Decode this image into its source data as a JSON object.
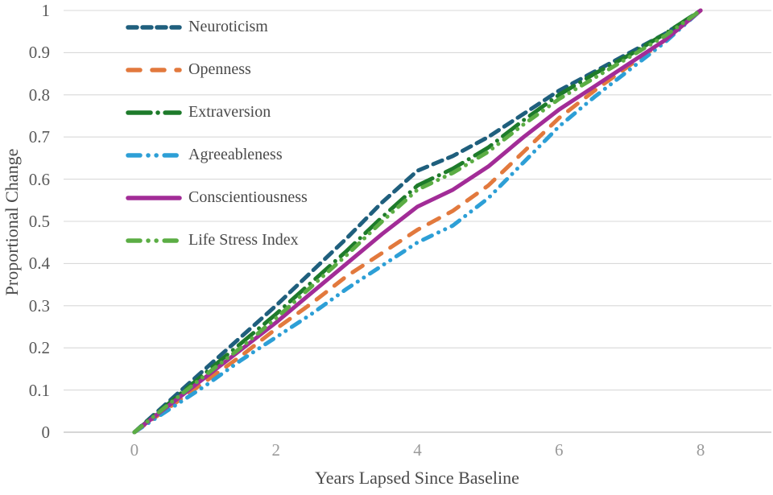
{
  "figure": {
    "background": "#ffffff",
    "grid_color": "#d9d9d9",
    "axis_line_color": "#c9c9c9",
    "y_tick_color": "#595959",
    "x_tick_color": "#9a9a9a",
    "title_color": "#4a4a4a"
  },
  "chart_data": {
    "type": "line",
    "title": "",
    "xlabel": "Years Lapsed Since Baseline",
    "ylabel": "Proportional Change",
    "xlim": [
      -1,
      9
    ],
    "ylim": [
      0,
      1
    ],
    "x_tick_values": [
      0,
      2,
      4,
      6,
      8
    ],
    "x_tick_labels": [
      "0",
      "2",
      "4",
      "6",
      "8"
    ],
    "y_tick_values": [
      1,
      0.9,
      0.8,
      0.7,
      0.6,
      0.5,
      0.4,
      0.3,
      0.2,
      0.1,
      0
    ],
    "y_tick_labels": [
      "1",
      "0.9",
      "0.8",
      "0.7",
      "0.6",
      "0.5",
      "0.4",
      "0.3",
      "0.2",
      "0.1",
      "0"
    ],
    "grid": "horizontal",
    "legend_position": "inside-top-left",
    "x": [
      0,
      0.5,
      1,
      1.5,
      2,
      2.5,
      3,
      3.5,
      4,
      4.5,
      5,
      5.5,
      6,
      6.5,
      7,
      7.5,
      8
    ],
    "series": [
      {
        "name": "Neuroticism",
        "slug": "neuroticism",
        "color": "#1f5f7d",
        "line_style": "dashed",
        "values": [
          0,
          0.075,
          0.15,
          0.225,
          0.3,
          0.38,
          0.46,
          0.545,
          0.62,
          0.655,
          0.7,
          0.755,
          0.81,
          0.855,
          0.9,
          0.945,
          1
        ]
      },
      {
        "name": "Openness",
        "slug": "openness",
        "color": "#e2793d",
        "line_style": "long-dash",
        "values": [
          0,
          0.06,
          0.12,
          0.18,
          0.245,
          0.305,
          0.37,
          0.425,
          0.48,
          0.525,
          0.585,
          0.665,
          0.745,
          0.81,
          0.87,
          0.93,
          1
        ]
      },
      {
        "name": "Extraversion",
        "slug": "extraversion",
        "color": "#1e7b2b",
        "line_style": "dash-dot",
        "values": [
          0,
          0.07,
          0.14,
          0.21,
          0.28,
          0.355,
          0.43,
          0.51,
          0.585,
          0.625,
          0.675,
          0.74,
          0.8,
          0.85,
          0.895,
          0.945,
          1
        ]
      },
      {
        "name": "Agreeableness",
        "slug": "agreeableness",
        "color": "#2d9fd6",
        "line_style": "dash-dot-dot",
        "values": [
          0,
          0.055,
          0.11,
          0.17,
          0.225,
          0.28,
          0.34,
          0.395,
          0.45,
          0.49,
          0.555,
          0.64,
          0.725,
          0.795,
          0.86,
          0.925,
          1
        ]
      },
      {
        "name": "Conscientiousness",
        "slug": "conscientiousness",
        "color": "#a22c97",
        "line_style": "solid",
        "values": [
          0,
          0.065,
          0.13,
          0.195,
          0.26,
          0.33,
          0.4,
          0.47,
          0.535,
          0.575,
          0.63,
          0.7,
          0.765,
          0.82,
          0.875,
          0.93,
          1
        ]
      },
      {
        "name": "Life Stress Index",
        "slug": "life-stress-index",
        "color": "#5bad44",
        "line_style": "dash-dot-dot",
        "values": [
          0,
          0.068,
          0.135,
          0.2,
          0.27,
          0.345,
          0.42,
          0.5,
          0.575,
          0.615,
          0.665,
          0.73,
          0.79,
          0.84,
          0.89,
          0.94,
          1
        ]
      }
    ]
  }
}
